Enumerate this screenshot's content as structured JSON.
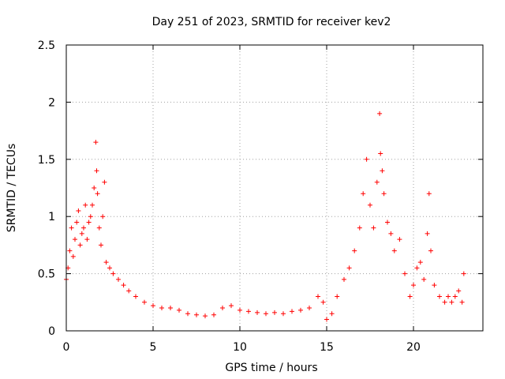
{
  "chart_data": {
    "type": "scatter",
    "title": "Day 251 of 2023, SRMTID for receiver kev2",
    "xlabel": "GPS time / hours",
    "ylabel": "SRMTID / TECUs",
    "xlim": [
      0,
      24
    ],
    "ylim": [
      0,
      2.5
    ],
    "xticks": [
      0,
      5,
      10,
      15,
      20
    ],
    "yticks": [
      0,
      0.5,
      1,
      1.5,
      2,
      2.5
    ],
    "xtick_labels": [
      "0",
      "5",
      "10",
      "15",
      "20"
    ],
    "ytick_labels": [
      "0",
      "0.5",
      "1",
      "1.5",
      "2",
      "2.5"
    ],
    "grid": true,
    "marker": "+",
    "color": "#ff0000",
    "series": [
      {
        "name": "SRMTID",
        "x": [
          0.0,
          0.1,
          0.2,
          0.3,
          0.4,
          0.5,
          0.6,
          0.7,
          0.8,
          0.9,
          1.0,
          1.1,
          1.2,
          1.3,
          1.4,
          1.5,
          1.6,
          1.7,
          1.75,
          1.8,
          1.9,
          2.0,
          2.1,
          2.2,
          2.3,
          2.5,
          2.7,
          3.0,
          3.3,
          3.6,
          4.0,
          4.5,
          5.0,
          5.5,
          6.0,
          6.5,
          7.0,
          7.5,
          8.0,
          8.5,
          9.0,
          9.5,
          10.0,
          10.5,
          11.0,
          11.5,
          12.0,
          12.5,
          13.0,
          13.5,
          14.0,
          14.5,
          14.8,
          15.0,
          15.3,
          15.6,
          16.0,
          16.3,
          16.6,
          16.9,
          17.1,
          17.3,
          17.5,
          17.7,
          17.9,
          18.05,
          18.1,
          18.2,
          18.3,
          18.5,
          18.7,
          18.9,
          19.2,
          19.5,
          19.8,
          20.0,
          20.2,
          20.4,
          20.6,
          20.8,
          20.9,
          21.0,
          21.2,
          21.5,
          21.8,
          22.0,
          22.2,
          22.4,
          22.6,
          22.8,
          22.9
        ],
        "y": [
          0.45,
          0.55,
          0.7,
          0.9,
          0.65,
          0.8,
          0.95,
          1.05,
          0.75,
          0.85,
          0.9,
          1.1,
          0.8,
          0.95,
          1.0,
          1.1,
          1.25,
          1.65,
          1.4,
          1.2,
          0.9,
          0.75,
          1.0,
          1.3,
          0.6,
          0.55,
          0.5,
          0.45,
          0.4,
          0.35,
          0.3,
          0.25,
          0.22,
          0.2,
          0.2,
          0.18,
          0.15,
          0.14,
          0.13,
          0.14,
          0.2,
          0.22,
          0.18,
          0.17,
          0.16,
          0.15,
          0.16,
          0.15,
          0.17,
          0.18,
          0.2,
          0.3,
          0.25,
          0.1,
          0.15,
          0.3,
          0.45,
          0.55,
          0.7,
          0.9,
          1.2,
          1.5,
          1.1,
          0.9,
          1.3,
          1.9,
          1.55,
          1.4,
          1.2,
          0.95,
          0.85,
          0.7,
          0.8,
          0.5,
          0.3,
          0.4,
          0.55,
          0.6,
          0.45,
          0.85,
          1.2,
          0.7,
          0.4,
          0.3,
          0.25,
          0.3,
          0.25,
          0.3,
          0.35,
          0.25,
          0.5
        ]
      }
    ]
  }
}
